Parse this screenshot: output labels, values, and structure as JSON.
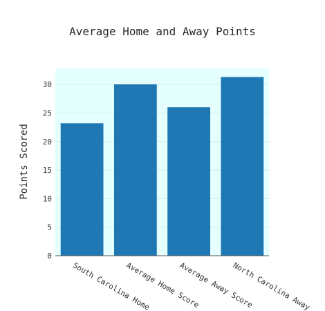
{
  "chart_data": {
    "type": "bar",
    "title": "Average Home and Away Points",
    "xlabel": "",
    "ylabel": "Points Scored",
    "categories": [
      "South Carolina Home",
      "Average Home Score",
      "Average Away Score",
      "North Carolina Away"
    ],
    "values": [
      23.2,
      30.0,
      26.0,
      31.3
    ],
    "ylim": [
      0,
      32.8
    ],
    "yticks": [
      0,
      5,
      10,
      15,
      20,
      25,
      30
    ],
    "grid": true,
    "legend": "none",
    "colors": {
      "bar": "#1f77b4",
      "plot_background": "#e5ffff",
      "grid": "#d2ecec",
      "axis": "#555555"
    }
  }
}
